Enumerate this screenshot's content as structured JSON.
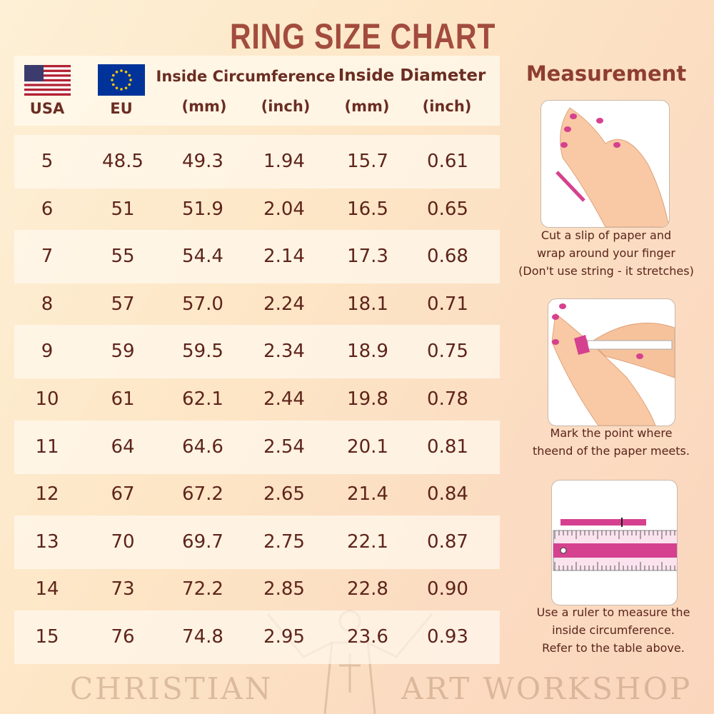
{
  "title": "RING SIZE CHART",
  "header": {
    "usa": "USA",
    "eu": "EU",
    "circumference": "Inside Circumference",
    "diameter": "Inside Diameter",
    "circ_mm": "(mm)",
    "circ_inch": "(inch)",
    "diam_mm": "(mm)",
    "diam_inch": "(inch)"
  },
  "rows": [
    [
      "5",
      "48.5",
      "49.3",
      "1.94",
      "15.7",
      "0.61"
    ],
    [
      "6",
      "51",
      "51.9",
      "2.04",
      "16.5",
      "0.65"
    ],
    [
      "7",
      "55",
      "54.4",
      "2.14",
      "17.3",
      "0.68"
    ],
    [
      "8",
      "57",
      "57.0",
      "2.24",
      "18.1",
      "0.71"
    ],
    [
      "9",
      "59",
      "59.5",
      "2.34",
      "18.9",
      "0.75"
    ],
    [
      "10",
      "61",
      "62.1",
      "2.44",
      "19.8",
      "0.78"
    ],
    [
      "11",
      "64",
      "64.6",
      "2.54",
      "20.1",
      "0.81"
    ],
    [
      "12",
      "67",
      "67.2",
      "2.65",
      "21.4",
      "0.84"
    ],
    [
      "13",
      "70",
      "69.7",
      "2.75",
      "22.1",
      "0.87"
    ],
    [
      "14",
      "73",
      "72.2",
      "2.85",
      "22.8",
      "0.90"
    ],
    [
      "15",
      "76",
      "74.8",
      "2.95",
      "23.6",
      "0.93"
    ]
  ],
  "measurement": {
    "title": "Measurement",
    "steps": [
      {
        "lines": [
          "Cut a slip of paper and",
          "wrap around your finger",
          "(Don't use string - it stretches)"
        ]
      },
      {
        "lines": [
          "Mark the point where",
          "theend of the paper meets."
        ]
      },
      {
        "lines": [
          "Use a ruler to measure the",
          "inside circumference.",
          "Refer to the table above."
        ]
      }
    ]
  },
  "watermark": {
    "left": "CHRISTIAN",
    "right": "ART WORKSHOP"
  },
  "colors": {
    "title": "#a24c3e",
    "text": "#5e241a",
    "accent": "#d6418f"
  }
}
